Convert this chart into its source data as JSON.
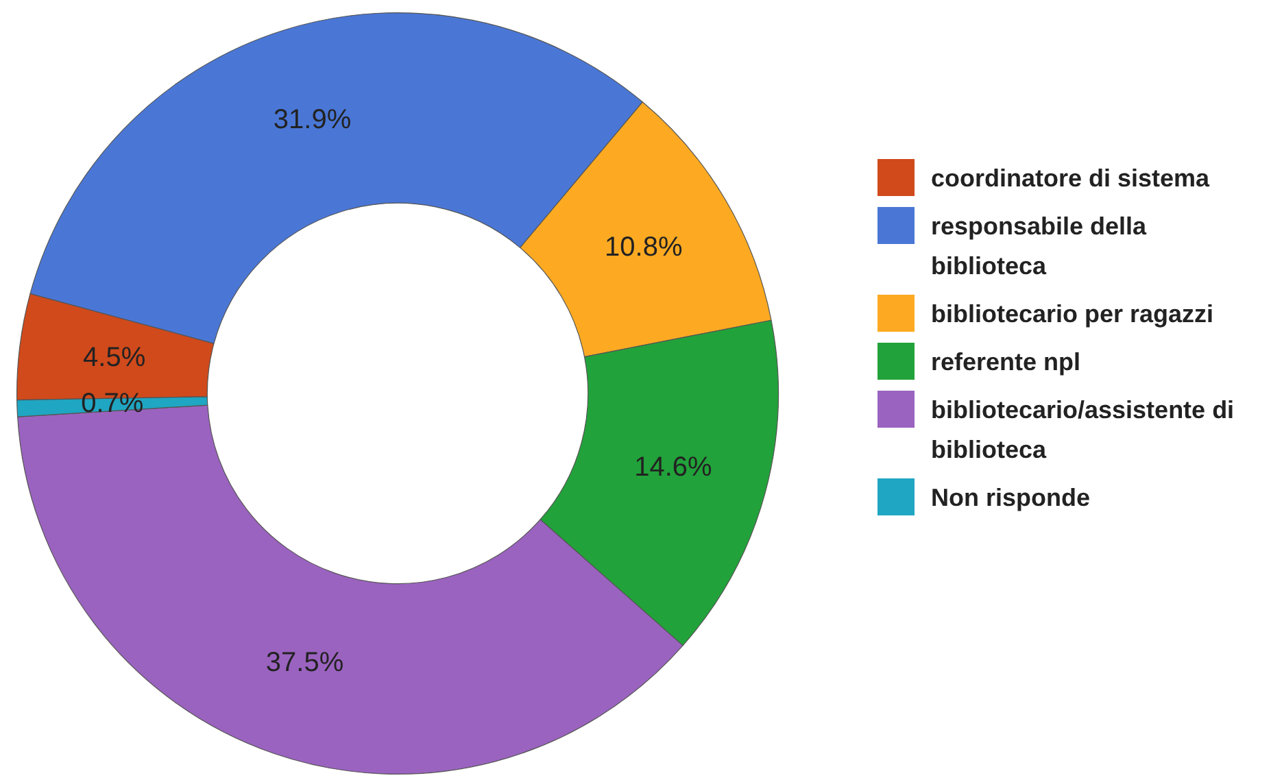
{
  "chart_data": {
    "type": "donut",
    "categories": [
      "coordinatore di sistema",
      "responsabile della biblioteca",
      "bibliotecario per ragazzi",
      "referente npl",
      "bibliotecario/assistente di biblioteca",
      "Non risponde"
    ],
    "values": [
      4.5,
      31.9,
      10.8,
      14.6,
      37.5,
      0.7
    ],
    "colors": [
      "#d04a1c",
      "#4a77d6",
      "#fdaa22",
      "#22a23a",
      "#9b63c0",
      "#1fa6c2"
    ],
    "value_labels": [
      "4.5%",
      "31.9%",
      "10.8%",
      "14.6%",
      "37.5%",
      "0.7%"
    ],
    "legend": "right"
  }
}
